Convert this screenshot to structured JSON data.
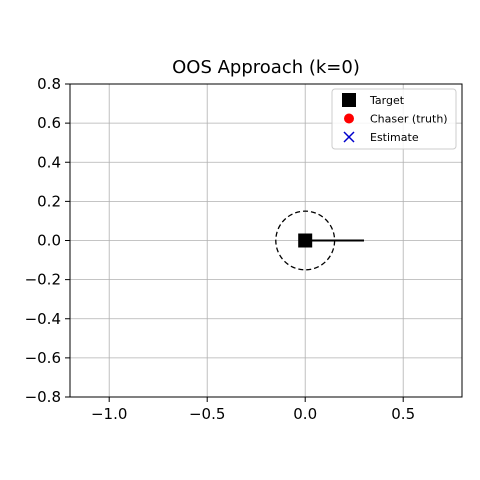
{
  "chart_data": {
    "type": "scatter",
    "title": "OOS Approach (k=0)",
    "xlabel": "",
    "ylabel": "",
    "xlim": [
      -1.2,
      0.8
    ],
    "ylim": [
      -0.8,
      0.8
    ],
    "grid": true,
    "x_ticks": [
      -1.0,
      -0.5,
      0.0,
      0.5
    ],
    "x_tick_labels": [
      "−1.0",
      "−0.5",
      "0.0",
      "0.5"
    ],
    "y_ticks": [
      0.8,
      0.6,
      0.4,
      0.2,
      0.0,
      -0.2,
      -0.4,
      -0.6,
      -0.8
    ],
    "y_tick_labels": [
      "0.8",
      "0.6",
      "0.4",
      "0.2",
      "0.0",
      "−0.2",
      "−0.4",
      "−0.6",
      "−0.8"
    ],
    "legend_position": "top-right",
    "legend": [
      {
        "label": "Target",
        "marker": "square",
        "color": "#000000"
      },
      {
        "label": "Chaser (truth)",
        "marker": "circle",
        "color": "#ff0000"
      },
      {
        "label": "Estimate",
        "marker": "x",
        "color": "#0000cc"
      }
    ],
    "target": {
      "x": 0.0,
      "y": 0.0
    },
    "keep_out_circle": {
      "cx": 0.0,
      "cy": 0.0,
      "r": 0.15,
      "style": "dashed"
    },
    "docking_line": {
      "x": [
        0.0,
        0.3
      ],
      "y": [
        0.0,
        0.0
      ]
    }
  }
}
